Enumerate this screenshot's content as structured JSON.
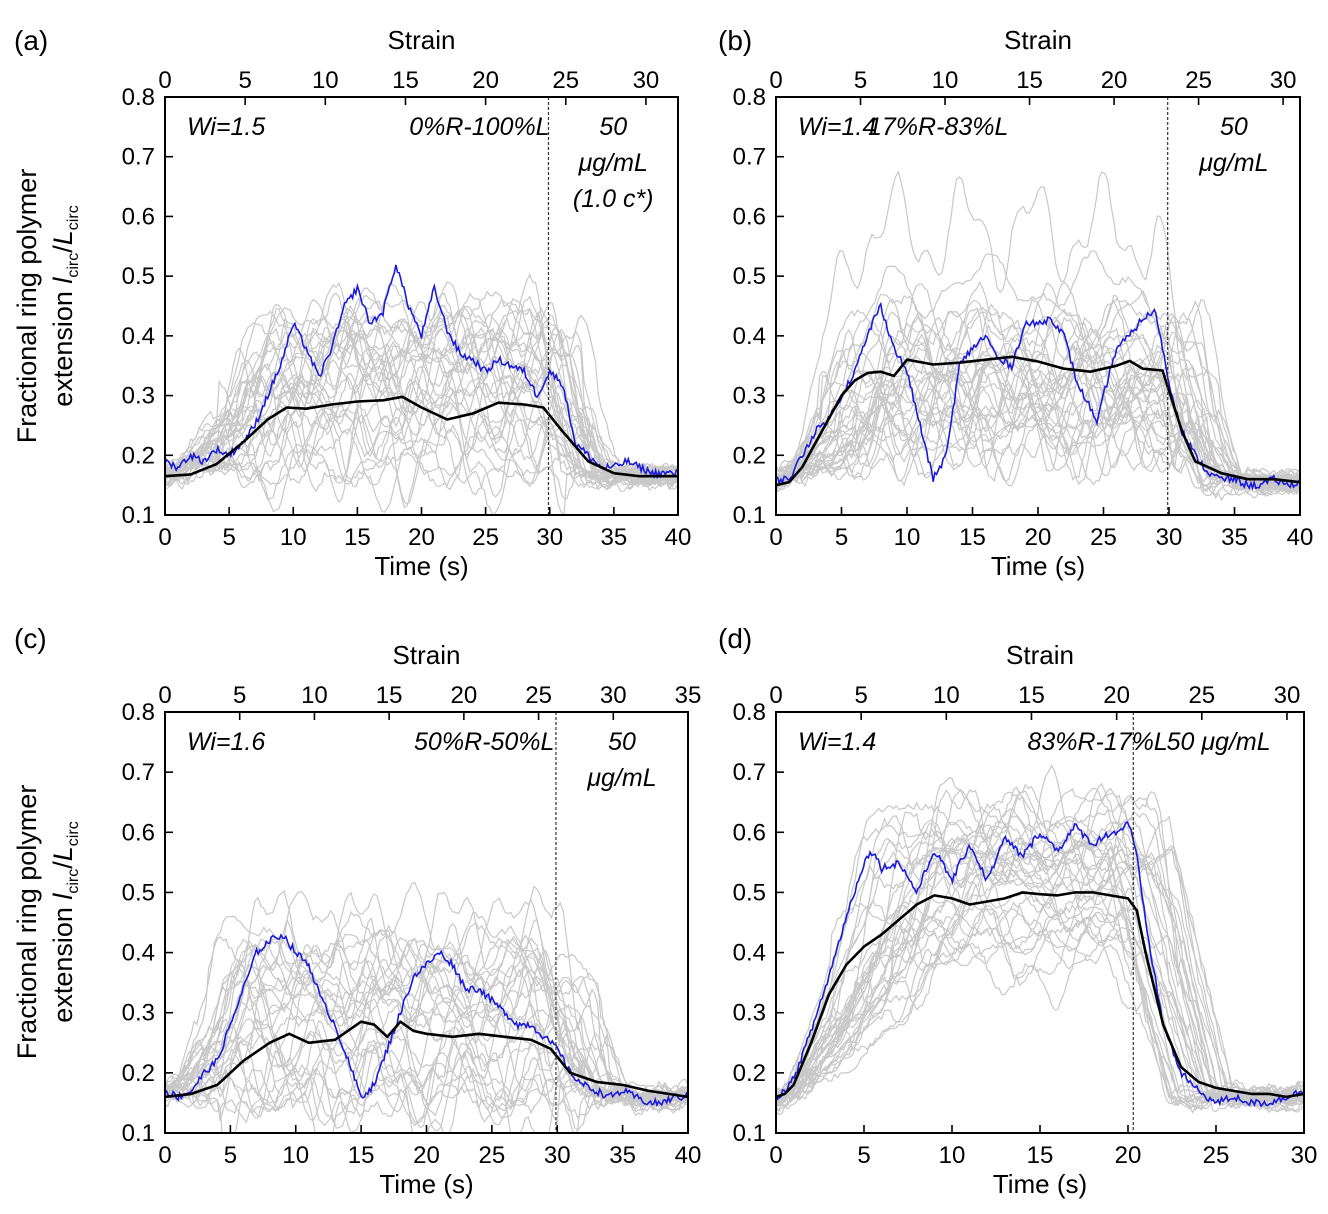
{
  "ylabel": {
    "line1": "Fractional ring polymer",
    "line2_prefix": "extension ",
    "l": "l",
    "l_sub": "circ",
    "slash": "/",
    "L": "L",
    "L_sub": "circ"
  },
  "chart_data": [
    {
      "type": "line",
      "label": "(a)",
      "xlabel": "Time (s)",
      "x2label": "Strain",
      "xlim": [
        0,
        40
      ],
      "ylim": [
        0.1,
        0.8
      ],
      "x2lim": [
        0,
        32
      ],
      "xticks": [
        "0",
        "5",
        "10",
        "15",
        "20",
        "25",
        "30",
        "35",
        "40"
      ],
      "x2ticks": [
        "0",
        "5",
        "10",
        "15",
        "20",
        "25",
        "30"
      ],
      "yticks": [
        "0.1",
        "0.2",
        "0.3",
        "0.4",
        "0.5",
        "0.6",
        "0.7",
        "0.8"
      ],
      "annotations": {
        "wi": "Wi=1.5",
        "ratio": "0%R-100%L",
        "conc": [
          "50",
          "μg/mL",
          "(1.0 c*)"
        ]
      },
      "divider_x": 29.9,
      "mean": {
        "x": [
          0,
          2,
          4,
          6,
          8,
          9.5,
          11,
          13,
          15,
          17,
          18.5,
          20,
          22,
          24,
          26,
          28,
          29.5,
          31,
          33,
          35,
          37,
          40
        ],
        "y": [
          0.165,
          0.168,
          0.185,
          0.22,
          0.26,
          0.28,
          0.278,
          0.285,
          0.29,
          0.292,
          0.298,
          0.28,
          0.26,
          0.27,
          0.288,
          0.285,
          0.28,
          0.24,
          0.19,
          0.17,
          0.165,
          0.165
        ]
      },
      "highlight": {
        "x": [
          0,
          1,
          2,
          3,
          4,
          5,
          6,
          7,
          8,
          9,
          10,
          11,
          12,
          13,
          14,
          15,
          16,
          17,
          18,
          19,
          20,
          21,
          22,
          23,
          24,
          25,
          26,
          27,
          28,
          29,
          30,
          31,
          32,
          33,
          34,
          35,
          36,
          37,
          38,
          39,
          40
        ],
        "y": [
          0.19,
          0.18,
          0.2,
          0.19,
          0.21,
          0.2,
          0.22,
          0.25,
          0.3,
          0.35,
          0.42,
          0.38,
          0.33,
          0.38,
          0.45,
          0.48,
          0.42,
          0.44,
          0.52,
          0.45,
          0.4,
          0.48,
          0.41,
          0.37,
          0.36,
          0.34,
          0.36,
          0.35,
          0.34,
          0.3,
          0.34,
          0.32,
          0.22,
          0.2,
          0.18,
          0.18,
          0.19,
          0.18,
          0.17,
          0.17,
          0.17
        ]
      },
      "bundle": {
        "count": 32,
        "t_rise": 9.5,
        "t_fall": 30.5,
        "base": 0.17,
        "plateau_lo": 0.18,
        "plateau_hi": 0.44,
        "end": 0.165
      }
    },
    {
      "type": "line",
      "label": "(b)",
      "xlabel": "Time (s)",
      "x2label": "Strain",
      "xlim": [
        0,
        40
      ],
      "ylim": [
        0.1,
        0.8
      ],
      "x2lim": [
        0,
        31
      ],
      "xticks": [
        "0",
        "5",
        "10",
        "15",
        "20",
        "25",
        "30",
        "35",
        "40"
      ],
      "x2ticks": [
        "0",
        "5",
        "10",
        "15",
        "20",
        "25",
        "30"
      ],
      "yticks": [
        "0.1",
        "0.2",
        "0.3",
        "0.4",
        "0.5",
        "0.6",
        "0.7",
        "0.8"
      ],
      "annotations": {
        "wi": "Wi=1.4",
        "ratio": "17%R-83%L",
        "conc": [
          "50",
          "μg/mL"
        ]
      },
      "divider_x": 29.9,
      "mean": {
        "x": [
          0,
          1,
          2,
          3,
          4,
          5,
          6,
          7,
          8,
          9,
          10,
          12,
          14,
          16,
          18,
          20,
          22,
          24,
          26,
          27,
          28,
          29.5,
          31,
          32,
          34,
          36,
          38,
          40
        ],
        "y": [
          0.15,
          0.155,
          0.18,
          0.22,
          0.26,
          0.3,
          0.325,
          0.338,
          0.34,
          0.333,
          0.36,
          0.352,
          0.355,
          0.36,
          0.365,
          0.357,
          0.345,
          0.34,
          0.35,
          0.358,
          0.345,
          0.342,
          0.24,
          0.19,
          0.17,
          0.16,
          0.16,
          0.155
        ]
      },
      "highlight": {
        "x": [
          0,
          1,
          2,
          3,
          4,
          5,
          6,
          7,
          7.5,
          8,
          9,
          10,
          11,
          12,
          13,
          14,
          15,
          16,
          17,
          18,
          19,
          20,
          21,
          22,
          23,
          24,
          24.5,
          25,
          26,
          27,
          28,
          29,
          30,
          31,
          32,
          33,
          34,
          35,
          36,
          37,
          38,
          39,
          40
        ],
        "y": [
          0.16,
          0.16,
          0.2,
          0.24,
          0.26,
          0.3,
          0.34,
          0.4,
          0.43,
          0.45,
          0.38,
          0.34,
          0.25,
          0.16,
          0.2,
          0.35,
          0.38,
          0.4,
          0.36,
          0.35,
          0.42,
          0.42,
          0.43,
          0.4,
          0.32,
          0.28,
          0.25,
          0.3,
          0.38,
          0.4,
          0.43,
          0.44,
          0.32,
          0.24,
          0.2,
          0.17,
          0.16,
          0.16,
          0.15,
          0.15,
          0.16,
          0.15,
          0.155
        ]
      },
      "bundle": {
        "count": 34,
        "t_rise": 7.5,
        "t_fall": 30.5,
        "base": 0.16,
        "plateau_lo": 0.2,
        "plateau_hi": 0.58,
        "end": 0.155
      }
    },
    {
      "type": "line",
      "label": "(c)",
      "xlabel": "Time (s)",
      "x2label": "Strain",
      "xlim": [
        0,
        40
      ],
      "ylim": [
        0.1,
        0.8
      ],
      "x2lim": [
        0,
        35
      ],
      "xticks": [
        "0",
        "5",
        "10",
        "15",
        "20",
        "25",
        "30",
        "35",
        "40"
      ],
      "x2ticks": [
        "0",
        "5",
        "10",
        "15",
        "20",
        "25",
        "30",
        "35"
      ],
      "yticks": [
        "0.1",
        "0.2",
        "0.3",
        "0.4",
        "0.5",
        "0.6",
        "0.7",
        "0.8"
      ],
      "annotations": {
        "wi": "Wi=1.6",
        "ratio": "50%R-50%L",
        "conc": [
          "50",
          "μg/mL"
        ]
      },
      "divider_x": 29.9,
      "mean": {
        "x": [
          0,
          2,
          4,
          6,
          8,
          9.5,
          11,
          13,
          15,
          16,
          17,
          18,
          19,
          20,
          22,
          24,
          26,
          28,
          29.5,
          31,
          33,
          35,
          37,
          40
        ],
        "y": [
          0.16,
          0.165,
          0.18,
          0.22,
          0.25,
          0.265,
          0.25,
          0.255,
          0.285,
          0.28,
          0.26,
          0.285,
          0.27,
          0.265,
          0.26,
          0.265,
          0.26,
          0.255,
          0.24,
          0.2,
          0.185,
          0.18,
          0.17,
          0.16
        ]
      },
      "highlight": {
        "x": [
          0,
          1,
          2,
          3,
          4,
          5,
          6,
          7,
          8,
          9,
          10,
          11,
          12,
          13,
          14,
          15,
          16,
          17,
          18,
          19,
          20,
          21,
          22,
          23,
          24,
          25,
          26,
          27,
          28,
          29,
          30,
          31,
          32,
          33,
          34,
          35,
          36,
          37,
          38,
          39,
          40
        ],
        "y": [
          0.17,
          0.16,
          0.17,
          0.2,
          0.22,
          0.28,
          0.34,
          0.4,
          0.42,
          0.43,
          0.4,
          0.38,
          0.32,
          0.28,
          0.22,
          0.16,
          0.18,
          0.24,
          0.3,
          0.36,
          0.38,
          0.4,
          0.38,
          0.34,
          0.34,
          0.32,
          0.3,
          0.28,
          0.28,
          0.26,
          0.24,
          0.2,
          0.18,
          0.17,
          0.16,
          0.17,
          0.16,
          0.15,
          0.15,
          0.16,
          0.16
        ]
      },
      "bundle": {
        "count": 30,
        "t_rise": 6,
        "t_fall": 30.5,
        "base": 0.165,
        "plateau_lo": 0.15,
        "plateau_hi": 0.46,
        "end": 0.16
      }
    },
    {
      "type": "line",
      "label": "(d)",
      "xlabel": "Time (s)",
      "x2label": "Strain",
      "xlim": [
        0,
        30
      ],
      "ylim": [
        0.1,
        0.8
      ],
      "x2lim": [
        0,
        31
      ],
      "xticks": [
        "0",
        "5",
        "10",
        "15",
        "20",
        "25",
        "30"
      ],
      "x2ticks": [
        "0",
        "5",
        "10",
        "15",
        "20",
        "25",
        "30"
      ],
      "yticks": [
        "0.1",
        "0.2",
        "0.3",
        "0.4",
        "0.5",
        "0.6",
        "0.7",
        "0.8"
      ],
      "annotations": {
        "wi": "Wi=1.4",
        "ratio": "83%R-17%L",
        "conc": [
          "50 μg/mL"
        ]
      },
      "divider_x": 20.3,
      "mean": {
        "x": [
          0,
          0.5,
          1,
          2,
          3,
          4,
          5,
          6,
          7,
          8,
          9,
          10,
          11,
          12,
          13,
          14,
          15,
          16,
          17,
          18,
          19,
          20,
          20.5,
          21,
          22,
          23,
          24,
          25,
          26,
          27,
          28,
          29,
          30
        ],
        "y": [
          0.16,
          0.165,
          0.18,
          0.25,
          0.33,
          0.38,
          0.41,
          0.43,
          0.455,
          0.48,
          0.495,
          0.49,
          0.48,
          0.485,
          0.49,
          0.5,
          0.497,
          0.495,
          0.5,
          0.5,
          0.495,
          0.49,
          0.47,
          0.4,
          0.28,
          0.21,
          0.185,
          0.175,
          0.17,
          0.165,
          0.165,
          0.16,
          0.165
        ]
      },
      "highlight": {
        "x": [
          0,
          0.5,
          1,
          2,
          3,
          4,
          5,
          5.5,
          6,
          7,
          8,
          9,
          10,
          11,
          12,
          13,
          14,
          15,
          16,
          17,
          18,
          19,
          19.5,
          20,
          20.5,
          21,
          22,
          23,
          24,
          25,
          26,
          27,
          28,
          29,
          30
        ],
        "y": [
          0.16,
          0.17,
          0.19,
          0.27,
          0.36,
          0.46,
          0.55,
          0.57,
          0.54,
          0.55,
          0.5,
          0.57,
          0.52,
          0.58,
          0.52,
          0.59,
          0.56,
          0.6,
          0.57,
          0.61,
          0.58,
          0.6,
          0.6,
          0.62,
          0.56,
          0.45,
          0.28,
          0.2,
          0.17,
          0.15,
          0.16,
          0.15,
          0.15,
          0.16,
          0.17
        ]
      },
      "bundle": {
        "count": 34,
        "t_rise": 8,
        "t_fall": 20.6,
        "base": 0.155,
        "plateau_lo": 0.38,
        "plateau_hi": 0.64,
        "end": 0.16
      }
    }
  ]
}
